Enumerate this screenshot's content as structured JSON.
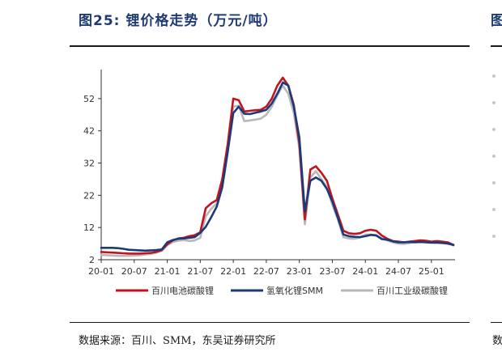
{
  "header": {
    "title": "图25:  锂价格走势（万元/吨）",
    "right_fragment": "图"
  },
  "footer": {
    "source": "数据来源：百川、SMM，东吴证券研究所",
    "right_fragment": "数"
  },
  "chart_data": {
    "type": "line",
    "title": "",
    "xlabel": "",
    "ylabel": "",
    "ylim": [
      2,
      60
    ],
    "y_ticks": [
      2,
      12,
      22,
      32,
      42,
      52
    ],
    "x_tick_labels": [
      "20-01",
      "20-07",
      "21-01",
      "21-07",
      "22-01",
      "22-07",
      "23-01",
      "23-07",
      "24-01",
      "24-07",
      "25-01"
    ],
    "legend_position": "bottom",
    "grid": false,
    "x": [
      "20-01",
      "20-02",
      "20-03",
      "20-04",
      "20-05",
      "20-06",
      "20-07",
      "20-08",
      "20-09",
      "20-10",
      "20-11",
      "20-12",
      "21-01",
      "21-02",
      "21-03",
      "21-04",
      "21-05",
      "21-06",
      "21-07",
      "21-08",
      "21-09",
      "21-10",
      "21-11",
      "21-12",
      "22-01",
      "22-02",
      "22-03",
      "22-04",
      "22-05",
      "22-06",
      "22-07",
      "22-08",
      "22-09",
      "22-10",
      "22-11",
      "22-12",
      "23-01",
      "23-02",
      "23-03",
      "23-04",
      "23-05",
      "23-06",
      "23-07",
      "23-08",
      "23-09",
      "23-10",
      "23-11",
      "23-12",
      "24-01",
      "24-02",
      "24-03",
      "24-04",
      "24-05",
      "24-06",
      "24-07",
      "24-08",
      "24-09",
      "24-10",
      "24-11",
      "24-12",
      "25-01",
      "25-02",
      "25-03",
      "25-04",
      "25-05"
    ],
    "series": [
      {
        "name": "百川电池碳酸锂",
        "color": "#c0151f",
        "values": [
          4.4,
          4.3,
          4.2,
          4.1,
          4.0,
          3.9,
          3.9,
          3.9,
          4.0,
          4.1,
          4.4,
          5.0,
          6.8,
          8.0,
          8.6,
          8.8,
          9.3,
          9.6,
          10.5,
          18.0,
          19.5,
          20.5,
          27.0,
          38.0,
          52.0,
          51.5,
          48.0,
          48.2,
          48.4,
          48.5,
          49.5,
          52.0,
          56.0,
          58.5,
          56.0,
          50.0,
          38.0,
          14.5,
          30.0,
          31.0,
          29.0,
          26.5,
          21.0,
          16.0,
          11.0,
          10.2,
          10.0,
          10.2,
          11.0,
          11.3,
          11.0,
          9.5,
          8.5,
          7.8,
          7.6,
          7.4,
          7.6,
          7.8,
          8.0,
          7.9,
          7.6,
          7.8,
          7.6,
          7.4,
          6.6
        ]
      },
      {
        "name": "氢氧化锂SMM",
        "color": "#1b3a78",
        "values": [
          5.7,
          5.7,
          5.7,
          5.6,
          5.4,
          5.1,
          5.0,
          4.9,
          4.8,
          4.9,
          5.0,
          5.2,
          7.4,
          8.1,
          8.5,
          8.6,
          8.8,
          9.0,
          10.3,
          12.2,
          15.2,
          18.5,
          24.5,
          35.5,
          47.5,
          49.5,
          47.3,
          47.2,
          47.6,
          48.0,
          48.5,
          50.5,
          53.5,
          57.0,
          56.0,
          49.5,
          40.0,
          17.0,
          26.5,
          27.5,
          26.5,
          24.0,
          20.0,
          15.0,
          9.8,
          9.3,
          9.1,
          9.0,
          9.3,
          9.7,
          9.5,
          8.4,
          8.2,
          7.7,
          7.4,
          7.4,
          7.5,
          7.4,
          7.5,
          7.4,
          7.3,
          7.3,
          7.2,
          7.0,
          6.6
        ]
      },
      {
        "name": "百川工业级碳酸锂",
        "color": "#b8b8bc",
        "values": [
          3.5,
          3.4,
          3.3,
          3.2,
          3.2,
          3.2,
          3.3,
          3.4,
          3.6,
          3.8,
          4.2,
          4.8,
          6.5,
          7.5,
          7.9,
          8.1,
          7.8,
          8.0,
          8.8,
          15.5,
          17.8,
          19.5,
          25.5,
          36.0,
          49.5,
          49.8,
          45.0,
          45.2,
          45.5,
          45.8,
          47.0,
          49.5,
          53.0,
          56.0,
          53.5,
          47.5,
          36.5,
          13.0,
          27.5,
          29.5,
          27.0,
          24.5,
          19.0,
          14.5,
          9.0,
          8.6,
          8.5,
          8.9,
          9.8,
          9.8,
          9.6,
          8.6,
          8.0,
          7.4,
          7.0,
          6.9,
          7.2,
          7.5,
          7.7,
          7.7,
          7.4,
          7.6,
          7.5,
          7.3,
          6.4
        ]
      }
    ]
  }
}
